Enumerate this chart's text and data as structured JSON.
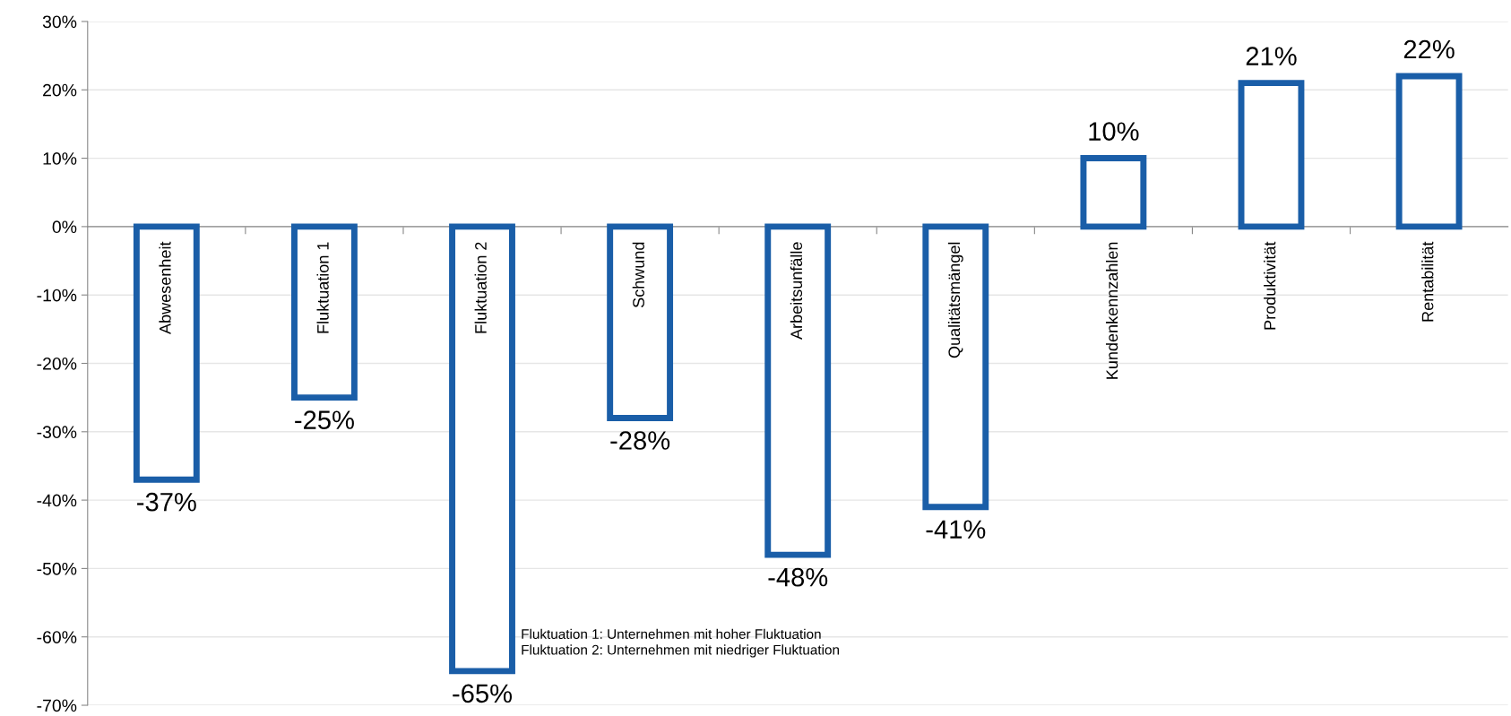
{
  "chart_data": {
    "type": "bar",
    "categories": [
      "Abwesenheit",
      "Fluktuation 1",
      "Fluktuation 2",
      "Schwund",
      "Arbeitsunfälle",
      "Qualitätsmängel",
      "Kundenkennzahlen",
      "Produktivität",
      "Rentabilität"
    ],
    "values": [
      -37,
      -25,
      -65,
      -28,
      -48,
      -41,
      10,
      21,
      22
    ],
    "value_labels": [
      "-37%",
      "-25%",
      "-65%",
      "-28%",
      "-48%",
      "-41%",
      "10%",
      "21%",
      "22%"
    ],
    "color": "#1a5ea8",
    "ylim": [
      -70,
      30
    ],
    "yticks": [
      {
        "value": -70,
        "label": "-70%"
      },
      {
        "value": -60,
        "label": "-60%"
      },
      {
        "value": -50,
        "label": "-50%"
      },
      {
        "value": -40,
        "label": "-40%"
      },
      {
        "value": -30,
        "label": "-30%"
      },
      {
        "value": -20,
        "label": "-20%"
      },
      {
        "value": -10,
        "label": "-10%"
      },
      {
        "value": 0,
        "label": "0%"
      },
      {
        "value": 10,
        "label": "10%"
      },
      {
        "value": 20,
        "label": "20%"
      },
      {
        "value": 30,
        "label": "30%"
      }
    ],
    "grid": "y",
    "annotations": [
      "Fluktuation 1: Unternehmen mit hoher Fluktuation\nFluktuation 2: Unternehmen mit niedriger Fluktuation"
    ]
  }
}
